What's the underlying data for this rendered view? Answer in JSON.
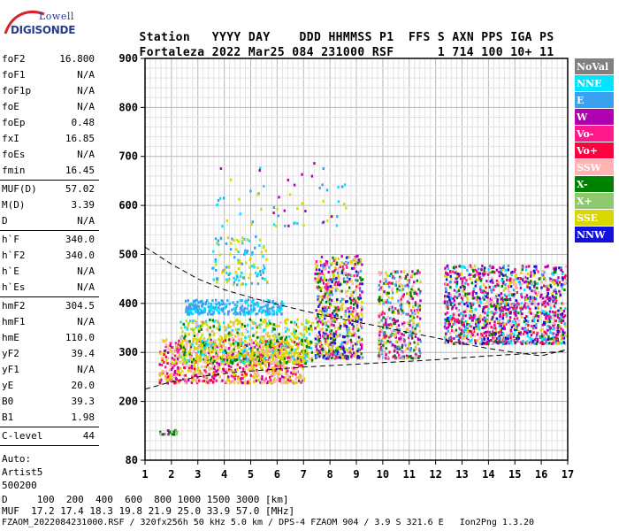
{
  "logo": {
    "top": "Lowell",
    "bottom": "DIGISONDE"
  },
  "header": {
    "row1": [
      "Station",
      "YYYY",
      "DAY",
      "DDD",
      "HHMMSS",
      "P1",
      "FFS",
      "S",
      "AXN",
      "PPS",
      "IGA",
      "PS"
    ],
    "row2": [
      "Fortaleza",
      "2022",
      "Mar25",
      "084",
      "231000",
      "RSF",
      "1",
      "714",
      "100",
      "10+",
      "11"
    ]
  },
  "params": {
    "group1": [
      {
        "name": "foF2",
        "value": "16.800"
      },
      {
        "name": "foF1",
        "value": "N/A"
      },
      {
        "name": "foF1p",
        "value": "N/A"
      },
      {
        "name": "foE",
        "value": "N/A"
      },
      {
        "name": "foEp",
        "value": "0.48"
      },
      {
        "name": "fxI",
        "value": "16.85"
      },
      {
        "name": "foEs",
        "value": "N/A"
      },
      {
        "name": "fmin",
        "value": "16.45"
      }
    ],
    "group2": [
      {
        "name": "MUF(D)",
        "value": "57.02"
      },
      {
        "name": "M(D)",
        "value": "3.39"
      },
      {
        "name": "D",
        "value": "N/A"
      }
    ],
    "group3": [
      {
        "name": "h`F",
        "value": "340.0"
      },
      {
        "name": "h`F2",
        "value": "340.0"
      },
      {
        "name": "h`E",
        "value": "N/A"
      },
      {
        "name": "h`Es",
        "value": "N/A"
      }
    ],
    "group4": [
      {
        "name": "hmF2",
        "value": "304.5"
      },
      {
        "name": "hmF1",
        "value": "N/A"
      },
      {
        "name": "hmE",
        "value": "110.0"
      },
      {
        "name": "yF2",
        "value": "39.4"
      },
      {
        "name": "yF1",
        "value": "N/A"
      },
      {
        "name": "yE",
        "value": "20.0"
      },
      {
        "name": "B0",
        "value": "39.3"
      },
      {
        "name": "B1",
        "value": "1.98"
      }
    ],
    "clevel": {
      "name": "C-level",
      "value": "44"
    },
    "auto": [
      "Auto:",
      "Artist5",
      "500200"
    ]
  },
  "footer": {
    "d_row": "D     100  200  400  600  800 1000 1500 3000 [km]",
    "muf_row": "MUF  17.2 17.4 18.3 19.8 21.9 25.0 33.9 57.0 [MHz]",
    "file_row": "FZAOM_2022084231000.RSF / 320fx256h 50 kHz 5.0 km / DPS-4 FZAOM 904 / 3.9 S 321.6 E   Ion2Png 1.3.20"
  },
  "chart_data": {
    "type": "scatter",
    "title": "",
    "xlabel": "",
    "ylabel": "",
    "xlim": [
      1,
      17
    ],
    "ylim": [
      80,
      900
    ],
    "x_ticks": [
      1,
      2,
      3,
      4,
      5,
      6,
      7,
      8,
      9,
      10,
      11,
      12,
      13,
      14,
      15,
      16,
      17
    ],
    "y_ticks": [
      80,
      200,
      300,
      400,
      500,
      600,
      700,
      800,
      900
    ],
    "grid": true,
    "legend_position": "right",
    "legend": [
      {
        "label": "NoVal",
        "color": "#808080",
        "text_color": "#ffffff"
      },
      {
        "label": "NNE",
        "color": "#00e5ff",
        "text_color": "#ffffff"
      },
      {
        "label": "E",
        "color": "#3aa0f0",
        "text_color": "#ffffff"
      },
      {
        "label": "W",
        "color": "#b000b0",
        "text_color": "#ffffff"
      },
      {
        "label": "Vo-",
        "color": "#ff1a8c",
        "text_color": "#ffffff"
      },
      {
        "label": "Vo+",
        "color": "#ff0040",
        "text_color": "#ffffff"
      },
      {
        "label": "SSW",
        "color": "#ffb3b3",
        "text_color": "#ffffff"
      },
      {
        "label": "X-",
        "color": "#008000",
        "text_color": "#ffffff"
      },
      {
        "label": "X+",
        "color": "#90c870",
        "text_color": "#ffffff"
      },
      {
        "label": "SSE",
        "color": "#d8d800",
        "text_color": "#ffffff"
      },
      {
        "label": "NNW",
        "color": "#1010e0",
        "text_color": "#ffffff"
      }
    ],
    "clusters": [
      {
        "name": "F lower trace",
        "x": [
          1.5,
          7.0
        ],
        "y": [
          240,
          330
        ],
        "density": 900,
        "colors": [
          "#ffb3b3",
          "#b000b0",
          "#ff1a8c",
          "#d8d800",
          "#ffb3b3",
          "#d8d800",
          "#ff0040"
        ]
      },
      {
        "name": "F mid trace",
        "x": [
          2.3,
          7.3
        ],
        "y": [
          280,
          370
        ],
        "density": 700,
        "colors": [
          "#d8d800",
          "#d8d800",
          "#ffb3b3",
          "#00e5ff",
          "#d8d800",
          "#008000"
        ]
      },
      {
        "name": "E band 400km",
        "x": [
          2.5,
          6.2
        ],
        "y": [
          380,
          410
        ],
        "density": 260,
        "colors": [
          "#3aa0f0",
          "#3aa0f0",
          "#00e5ff"
        ]
      },
      {
        "name": "E spread 500km",
        "x": [
          3.5,
          5.6
        ],
        "y": [
          440,
          540
        ],
        "density": 120,
        "colors": [
          "#3aa0f0",
          "#00e5ff",
          "#d8d800"
        ]
      },
      {
        "name": "column 8MHz",
        "x": [
          7.4,
          9.2
        ],
        "y": [
          290,
          500
        ],
        "density": 700,
        "colors": [
          "#d8d800",
          "#d8d800",
          "#ffb3b3",
          "#1010e0",
          "#b000b0",
          "#ff1a8c",
          "#008000",
          "#3aa0f0"
        ]
      },
      {
        "name": "column 10-11MHz",
        "x": [
          9.8,
          11.4
        ],
        "y": [
          290,
          470
        ],
        "density": 420,
        "colors": [
          "#d8d800",
          "#ffb3b3",
          "#b000b0",
          "#ff1a8c",
          "#008000",
          "#3aa0f0"
        ]
      },
      {
        "name": "F2 high",
        "x": [
          12.3,
          16.9
        ],
        "y": [
          320,
          480
        ],
        "density": 1300,
        "colors": [
          "#1010e0",
          "#b000b0",
          "#b000b0",
          "#00e5ff",
          "#3aa0f0",
          "#ff1a8c",
          "#d8d800",
          "#008000",
          "#ffb3b3",
          "#ff0040"
        ]
      },
      {
        "name": "sparse top",
        "x": [
          3.6,
          8.6
        ],
        "y": [
          560,
          690
        ],
        "density": 60,
        "colors": [
          "#00e5ff",
          "#3aa0f0",
          "#d8d800",
          "#b000b0"
        ]
      },
      {
        "name": "low echo",
        "x": [
          1.5,
          2.2
        ],
        "y": [
          135,
          145
        ],
        "density": 20,
        "colors": [
          "#90c870",
          "#b000b0",
          "#008000"
        ]
      }
    ],
    "fit_curves": {
      "upper": {
        "x": [
          1.0,
          2.0,
          3.0,
          4.0,
          5.0,
          6.0,
          7.0,
          8.0,
          9.0,
          10.0,
          11.0,
          12.0,
          13.0,
          14.0,
          15.0,
          16.0,
          16.9
        ],
        "y": [
          515,
          480,
          450,
          428,
          412,
          398,
          385,
          373,
          362,
          352,
          340,
          330,
          318,
          308,
          300,
          293,
          305
        ]
      },
      "lower": {
        "x": [
          1.0,
          2.0,
          3.0,
          4.0,
          5.0,
          6.0,
          7.0,
          8.0,
          9.0,
          10.0,
          11.0,
          12.0,
          13.0,
          14.0,
          15.0,
          16.0,
          16.9
        ],
        "y": [
          225,
          240,
          250,
          257,
          262,
          266,
          270,
          273,
          276,
          279,
          282,
          285,
          289,
          293,
          296,
          299,
          302
        ]
      }
    }
  }
}
